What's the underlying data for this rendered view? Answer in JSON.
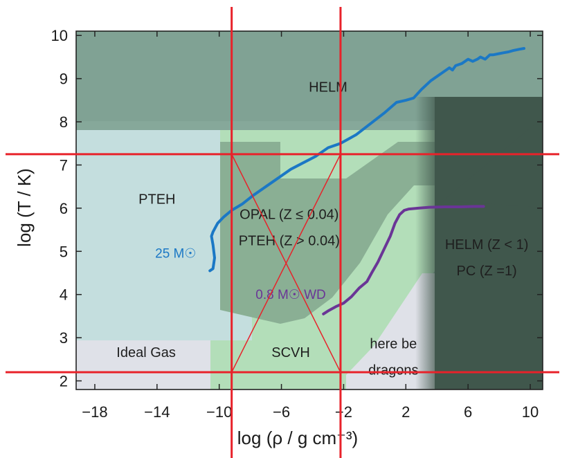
{
  "chart_data": {
    "type": "line",
    "title": "",
    "xlabel": "log (ρ / g cm⁻³)",
    "ylabel": "log (T / K)",
    "xlim": [
      -19.2,
      10.8
    ],
    "ylim": [
      1.8,
      10.1
    ],
    "xticks": [
      -18,
      -14,
      -10,
      -6,
      -2,
      2,
      6,
      10
    ],
    "yticks": [
      2,
      3,
      4,
      5,
      6,
      7,
      8,
      9,
      10
    ],
    "xtick_labels": [
      "−18",
      "−14",
      "−10",
      "−6",
      "−2",
      "2",
      "6",
      "10"
    ],
    "ytick_labels": [
      "2",
      "3",
      "4",
      "5",
      "6",
      "7",
      "8",
      "9",
      "10"
    ],
    "grid": false,
    "colors": {
      "helm": "#86a89a",
      "helm_dark": "#40574c",
      "pteh": "#c4dede",
      "opal": "#8aaf94",
      "green_light": "#b3deb9",
      "ideal_gas": "#dfe1e8",
      "dragons": "#dfe1e8",
      "track_25": "#1b78c5",
      "track_wd": "#6a3596",
      "red": "#e8222a",
      "frame": "#222222"
    },
    "regions": [
      {
        "name": "HELM",
        "label": "HELM",
        "label_at": [
          -3,
          8.7
        ]
      },
      {
        "name": "PTEH",
        "label": "PTEH",
        "label_at": [
          -14,
          6.1
        ]
      },
      {
        "name": "OPAL",
        "label_lines": [
          "OPAL (Z ≤ 0.04)",
          "PTEH (Z > 0.04)"
        ],
        "label_at": [
          -5.5,
          5.75
        ]
      },
      {
        "name": "HELM-PC",
        "label_lines": [
          "HELM (Z < 1)",
          "PC (Z =1)"
        ],
        "label_at": [
          7.2,
          5.05
        ]
      },
      {
        "name": "SCVH",
        "label": "SCVH",
        "label_at": [
          -5.4,
          2.55
        ]
      },
      {
        "name": "Ideal Gas",
        "label": "Ideal Gas",
        "label_at": [
          -14.7,
          2.55
        ]
      },
      {
        "name": "dragons",
        "label_lines": [
          "here be",
          "dragons"
        ],
        "label_at": [
          1.2,
          2.75
        ]
      }
    ],
    "series": [
      {
        "name": "25 M☉",
        "color": "#1b78c5",
        "x": [
          -10.6,
          -10.4,
          -10.3,
          -10.4,
          -10.5,
          -10.4,
          -10.1,
          -9.7,
          -9.2,
          -8.5,
          -7.8,
          -7.0,
          -6.2,
          -5.4,
          -4.6,
          -3.8,
          -3.0,
          -2.2,
          -1.2,
          -0.3,
          0.6,
          1.4,
          2.0,
          2.5,
          3.0,
          3.6,
          4.2,
          4.8,
          5.0,
          5.2,
          5.6,
          6.0,
          6.3,
          6.6,
          6.8,
          7.1,
          7.4,
          7.6,
          8.0,
          8.3,
          8.6,
          8.9,
          9.3,
          9.6
        ],
        "y": [
          4.55,
          4.6,
          4.85,
          5.15,
          5.35,
          5.45,
          5.65,
          5.8,
          5.95,
          6.1,
          6.3,
          6.5,
          6.7,
          6.9,
          7.05,
          7.2,
          7.4,
          7.5,
          7.7,
          7.95,
          8.2,
          8.45,
          8.5,
          8.55,
          8.75,
          8.95,
          9.1,
          9.25,
          9.2,
          9.3,
          9.35,
          9.45,
          9.4,
          9.45,
          9.5,
          9.45,
          9.55,
          9.55,
          9.58,
          9.6,
          9.62,
          9.65,
          9.68,
          9.7
        ]
      },
      {
        "name": "0.8 M☉ WD",
        "color": "#6a3596",
        "x": [
          -3.3,
          -3.0,
          -2.5,
          -2.0,
          -1.5,
          -1.0,
          -0.5,
          -0.2,
          0.2,
          0.6,
          1.0,
          1.3,
          1.6,
          1.9,
          2.2,
          2.8,
          3.5,
          4.5,
          5.5,
          6.5,
          7.0
        ],
        "y": [
          3.55,
          3.62,
          3.72,
          3.8,
          3.95,
          4.15,
          4.3,
          4.5,
          4.75,
          5.05,
          5.35,
          5.65,
          5.85,
          5.95,
          5.98,
          6.0,
          6.02,
          6.03,
          6.03,
          6.04,
          6.04
        ]
      }
    ],
    "annotations": [
      {
        "text": "25 M☉",
        "color": "#1b78c5",
        "at": [
          -12.8,
          4.85
        ]
      },
      {
        "text": "0.8 M☉ WD",
        "color": "#6a3596",
        "at": [
          -5.4,
          3.9
        ]
      }
    ],
    "overlay_lines": {
      "color": "#e8222a",
      "vertical_x": [
        -9.2,
        -2.2
      ],
      "horizontal_y": [
        7.25,
        2.2
      ]
    }
  }
}
